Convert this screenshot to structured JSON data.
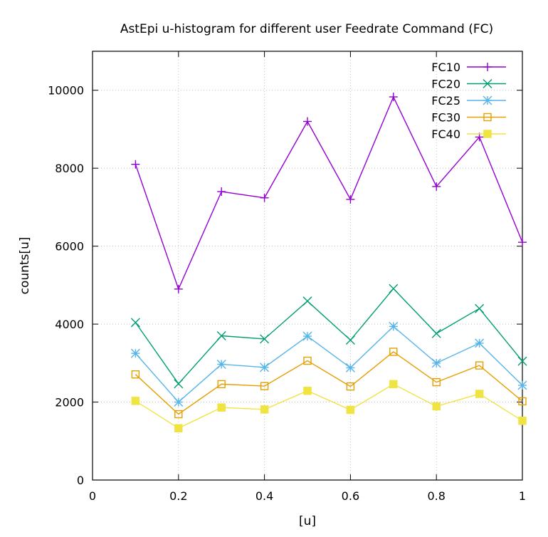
{
  "chart_data": {
    "type": "line",
    "title": "AstEpi u-histogram for different user Feedrate Command (FC)",
    "xlabel": "[u]",
    "ylabel": "counts[u]",
    "xlim": [
      0,
      1
    ],
    "ylim": [
      0,
      11000
    ],
    "x_ticks": [
      0,
      0.2,
      0.4,
      0.6,
      0.8,
      1
    ],
    "x_tick_labels": [
      "0",
      "0.2",
      "0.4",
      "0.6",
      "0.8",
      "1"
    ],
    "y_ticks": [
      0,
      2000,
      4000,
      6000,
      8000,
      10000
    ],
    "y_tick_labels": [
      "0",
      "2000",
      "4000",
      "6000",
      "8000",
      "10000"
    ],
    "grid": true,
    "legend_position": "top-right",
    "x": [
      0.1,
      0.2,
      0.3,
      0.4,
      0.5,
      0.6,
      0.7,
      0.8,
      0.9,
      1.0
    ],
    "series": [
      {
        "name": "FC10",
        "color": "#9400d3",
        "marker": "plus",
        "values": [
          8100,
          4900,
          7400,
          7240,
          9200,
          7200,
          9830,
          7530,
          8800,
          6100
        ]
      },
      {
        "name": "FC20",
        "color": "#009e73",
        "marker": "cross",
        "values": [
          4040,
          2470,
          3700,
          3620,
          4590,
          3590,
          4910,
          3760,
          4400,
          3050
        ]
      },
      {
        "name": "FC25",
        "color": "#56b4e9",
        "marker": "star",
        "values": [
          3250,
          2000,
          2970,
          2890,
          3690,
          2880,
          3940,
          3000,
          3510,
          2430
        ]
      },
      {
        "name": "FC30",
        "color": "#e69f00",
        "marker": "open-square",
        "values": [
          2710,
          1690,
          2460,
          2410,
          3060,
          2400,
          3290,
          2510,
          2940,
          2020
        ]
      },
      {
        "name": "FC40",
        "color": "#f0e442",
        "marker": "filled-square",
        "values": [
          2030,
          1330,
          1860,
          1810,
          2290,
          1800,
          2460,
          1890,
          2210,
          1520
        ]
      }
    ]
  }
}
